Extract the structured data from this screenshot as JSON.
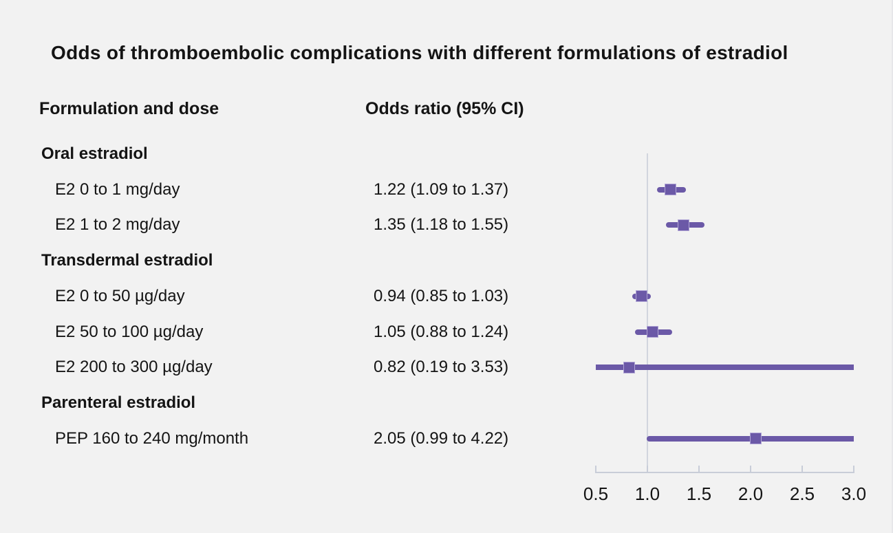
{
  "chart_data": {
    "type": "forest",
    "title": "Odds of thromboembolic complications with different formulations of estradiol",
    "column_headers": {
      "formulation": "Formulation and dose",
      "odds_ratio": "Odds ratio (95% CI)"
    },
    "xlim": [
      0.5,
      3.0
    ],
    "tick_values": [
      0.5,
      1.0,
      1.5,
      2.0,
      2.5,
      3.0
    ],
    "tick_labels": [
      "0.5",
      "1.0",
      "1.5",
      "2.0",
      "2.5",
      "3.0"
    ],
    "reference_value": 1.0,
    "grid": "off",
    "legend": "none",
    "groups": [
      {
        "label": "Oral estradiol",
        "items": [
          {
            "label": "E2 0 to 1 mg/day",
            "or_text": "1.22 (1.09 to 1.37)",
            "or": 1.22,
            "ci_low": 1.09,
            "ci_high": 1.37
          },
          {
            "label": "E2 1 to 2 mg/day",
            "or_text": "1.35 (1.18 to 1.55)",
            "or": 1.35,
            "ci_low": 1.18,
            "ci_high": 1.55
          }
        ]
      },
      {
        "label": "Transdermal estradiol",
        "items": [
          {
            "label": "E2 0 to 50 µg/day",
            "or_text": "0.94 (0.85 to 1.03)",
            "or": 0.94,
            "ci_low": 0.85,
            "ci_high": 1.03
          },
          {
            "label": "E2 50 to 100 µg/day",
            "or_text": "1.05 (0.88 to 1.24)",
            "or": 1.05,
            "ci_low": 0.88,
            "ci_high": 1.24
          },
          {
            "label": "E2 200 to 300 µg/day",
            "or_text": "0.82 (0.19 to 3.53)",
            "or": 0.82,
            "ci_low": 0.19,
            "ci_high": 3.53
          }
        ]
      },
      {
        "label": "Parenteral estradiol",
        "items": [
          {
            "label": "PEP 160 to 240 mg/month",
            "or_text": "2.05 (0.99 to 4.22)",
            "or": 2.05,
            "ci_low": 0.99,
            "ci_high": 4.22
          }
        ]
      }
    ]
  },
  "colors": {
    "background": "#f2f2f2",
    "text": "#141414",
    "marker": "#6b59a7",
    "marker_edge": "#b1a6d6",
    "axis": "#c8cdd8",
    "reference_line": "#d1d5de"
  }
}
